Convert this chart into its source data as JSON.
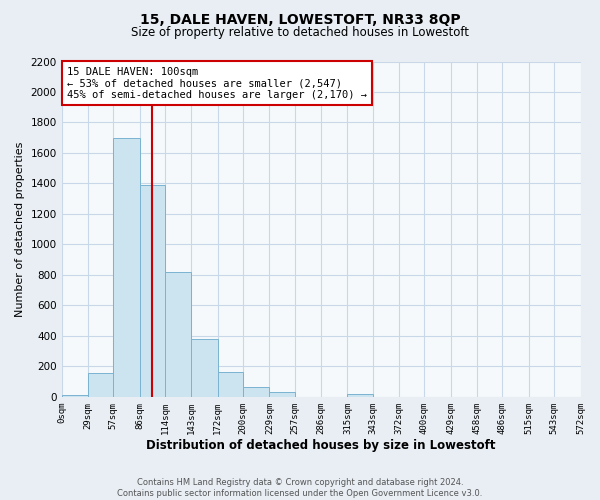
{
  "title": "15, DALE HAVEN, LOWESTOFT, NR33 8QP",
  "subtitle": "Size of property relative to detached houses in Lowestoft",
  "xlabel": "Distribution of detached houses by size in Lowestoft",
  "ylabel": "Number of detached properties",
  "bar_edges": [
    0,
    29,
    57,
    86,
    114,
    143,
    172,
    200,
    229,
    257,
    286,
    315,
    343,
    372,
    400,
    429,
    458,
    486,
    515,
    543,
    572
  ],
  "bar_heights": [
    15,
    155,
    1700,
    1390,
    820,
    380,
    160,
    65,
    30,
    0,
    0,
    20,
    0,
    0,
    0,
    0,
    0,
    0,
    0,
    0
  ],
  "tick_labels": [
    "0sqm",
    "29sqm",
    "57sqm",
    "86sqm",
    "114sqm",
    "143sqm",
    "172sqm",
    "200sqm",
    "229sqm",
    "257sqm",
    "286sqm",
    "315sqm",
    "343sqm",
    "372sqm",
    "400sqm",
    "429sqm",
    "458sqm",
    "486sqm",
    "515sqm",
    "543sqm",
    "572sqm"
  ],
  "bar_color": "#cce4f0",
  "bar_edge_color": "#7ab3d0",
  "property_line_x": 100,
  "property_line_color": "#cc0000",
  "annotation_line1": "15 DALE HAVEN: 100sqm",
  "annotation_line2": "← 53% of detached houses are smaller (2,547)",
  "annotation_line3": "45% of semi-detached houses are larger (2,170) →",
  "annotation_box_facecolor": "#ffffff",
  "annotation_box_edgecolor": "#cc0000",
  "ylim": [
    0,
    2200
  ],
  "yticks": [
    0,
    200,
    400,
    600,
    800,
    1000,
    1200,
    1400,
    1600,
    1800,
    2000,
    2200
  ],
  "xlim": [
    0,
    572
  ],
  "footer_line1": "Contains HM Land Registry data © Crown copyright and database right 2024.",
  "footer_line2": "Contains public sector information licensed under the Open Government Licence v3.0.",
  "background_color": "#e8eef4",
  "plot_bg_color": "#f5f9fc",
  "grid_color": "#c8d8e8",
  "title_fontsize": 10,
  "subtitle_fontsize": 8.5,
  "ylabel_fontsize": 8,
  "xlabel_fontsize": 8.5,
  "tick_fontsize": 6.5,
  "ytick_fontsize": 7.5,
  "annot_fontsize": 7.5,
  "footer_fontsize": 6.0
}
